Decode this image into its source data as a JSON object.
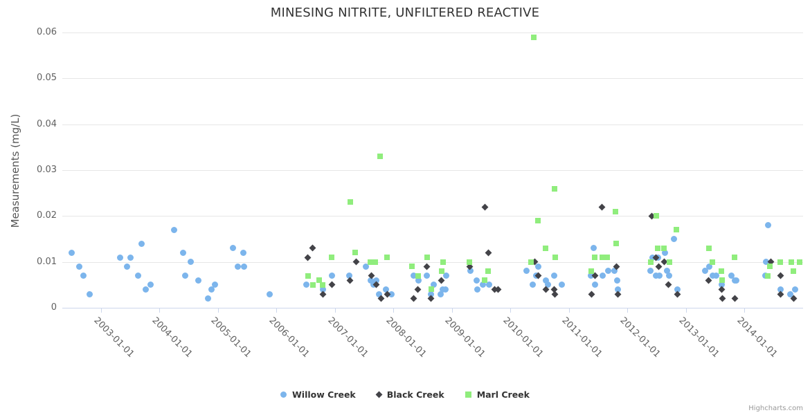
{
  "credit": "Highcharts.com",
  "chart_data": {
    "type": "scatter",
    "title": "MINESING NITRITE, UNFILTERED REACTIVE",
    "xlabel": "",
    "ylabel": "Measurements (mg/L)",
    "xlim": [
      2002.34,
      2015.0
    ],
    "ylim": [
      0,
      0.06
    ],
    "grid": "horizontal-only",
    "legend_position": "bottom-center",
    "y_ticks": [
      0,
      0.01,
      0.02,
      0.03,
      0.04,
      0.05,
      0.06
    ],
    "y_tick_labels": [
      "0",
      "0.01",
      "0.02",
      "0.03",
      "0.04",
      "0.05",
      "0.06"
    ],
    "x_tick_years": [
      2003,
      2004,
      2005,
      2006,
      2007,
      2008,
      2009,
      2010,
      2011,
      2012,
      2013,
      2014
    ],
    "x_tick_labels": [
      "2003-01-01",
      "2004-01-01",
      "2005-01-01",
      "2006-01-01",
      "2007-01-01",
      "2008-01-01",
      "2009-01-01",
      "2010-01-01",
      "2011-01-01",
      "2012-01-01",
      "2013-01-01",
      "2014-01-01"
    ],
    "series": [
      {
        "name": "Willow Creek",
        "color": "#7cb5ec",
        "marker": "circle",
        "points": [
          [
            2002.5,
            0.012
          ],
          [
            2002.63,
            0.009
          ],
          [
            2002.7,
            0.007
          ],
          [
            2002.81,
            0.003
          ],
          [
            2003.33,
            0.011
          ],
          [
            2003.45,
            0.009
          ],
          [
            2003.51,
            0.011
          ],
          [
            2003.64,
            0.007
          ],
          [
            2003.7,
            0.014
          ],
          [
            2003.76,
            0.004
          ],
          [
            2003.85,
            0.005
          ],
          [
            2004.25,
            0.017
          ],
          [
            2004.41,
            0.012
          ],
          [
            2004.44,
            0.007
          ],
          [
            2004.53,
            0.01
          ],
          [
            2004.67,
            0.006
          ],
          [
            2004.83,
            0.002
          ],
          [
            2004.89,
            0.004
          ],
          [
            2004.95,
            0.005
          ],
          [
            2005.26,
            0.013
          ],
          [
            2005.34,
            0.009
          ],
          [
            2005.43,
            0.012
          ],
          [
            2005.45,
            0.009
          ],
          [
            2005.88,
            0.003
          ],
          [
            2006.51,
            0.005
          ],
          [
            2006.8,
            0.004
          ],
          [
            2006.95,
            0.007
          ],
          [
            2007.25,
            0.007
          ],
          [
            2007.53,
            0.009
          ],
          [
            2007.61,
            0.006
          ],
          [
            2007.66,
            0.005
          ],
          [
            2007.71,
            0.006
          ],
          [
            2007.75,
            0.003
          ],
          [
            2007.87,
            0.004
          ],
          [
            2007.97,
            0.003
          ],
          [
            2008.34,
            0.007
          ],
          [
            2008.43,
            0.006
          ],
          [
            2008.57,
            0.007
          ],
          [
            2008.64,
            0.003
          ],
          [
            2008.69,
            0.005
          ],
          [
            2008.81,
            0.003
          ],
          [
            2008.84,
            0.004
          ],
          [
            2008.89,
            0.004
          ],
          [
            2008.9,
            0.007
          ],
          [
            2009.31,
            0.008
          ],
          [
            2009.42,
            0.006
          ],
          [
            2009.43,
            0.004
          ],
          [
            2009.53,
            0.005
          ],
          [
            2009.63,
            0.005
          ],
          [
            2010.27,
            0.008
          ],
          [
            2010.38,
            0.005
          ],
          [
            2010.44,
            0.007
          ],
          [
            2010.48,
            0.009
          ],
          [
            2010.6,
            0.006
          ],
          [
            2010.64,
            0.005
          ],
          [
            2010.75,
            0.007
          ],
          [
            2010.88,
            0.005
          ],
          [
            2011.37,
            0.007
          ],
          [
            2011.42,
            0.013
          ],
          [
            2011.44,
            0.005
          ],
          [
            2011.57,
            0.007
          ],
          [
            2011.67,
            0.008
          ],
          [
            2011.77,
            0.008
          ],
          [
            2011.82,
            0.006
          ],
          [
            2011.83,
            0.004
          ],
          [
            2012.39,
            0.008
          ],
          [
            2012.43,
            0.011
          ],
          [
            2012.48,
            0.007
          ],
          [
            2012.52,
            0.011
          ],
          [
            2012.54,
            0.007
          ],
          [
            2012.64,
            0.012
          ],
          [
            2012.68,
            0.008
          ],
          [
            2012.71,
            0.007
          ],
          [
            2012.79,
            0.015
          ],
          [
            2012.85,
            0.004
          ],
          [
            2013.32,
            0.008
          ],
          [
            2013.4,
            0.009
          ],
          [
            2013.46,
            0.007
          ],
          [
            2013.52,
            0.007
          ],
          [
            2013.61,
            0.005
          ],
          [
            2013.77,
            0.007
          ],
          [
            2013.83,
            0.006
          ],
          [
            2013.86,
            0.006
          ],
          [
            2014.37,
            0.01
          ],
          [
            2014.4,
            0.018
          ],
          [
            2014.35,
            0.007
          ],
          [
            2014.62,
            0.004
          ],
          [
            2014.78,
            0.003
          ],
          [
            2014.86,
            0.004
          ]
        ]
      },
      {
        "name": "Black Creek",
        "color": "#434348",
        "marker": "diamond",
        "points": [
          [
            2006.53,
            0.011
          ],
          [
            2006.62,
            0.013
          ],
          [
            2006.8,
            0.003
          ],
          [
            2006.95,
            0.005
          ],
          [
            2007.26,
            0.006
          ],
          [
            2007.36,
            0.01
          ],
          [
            2007.62,
            0.007
          ],
          [
            2007.7,
            0.005
          ],
          [
            2007.79,
            0.002
          ],
          [
            2007.89,
            0.003
          ],
          [
            2008.34,
            0.002
          ],
          [
            2008.42,
            0.004
          ],
          [
            2008.57,
            0.009
          ],
          [
            2008.64,
            0.002
          ],
          [
            2008.82,
            0.006
          ],
          [
            2009.3,
            0.009
          ],
          [
            2009.56,
            0.022
          ],
          [
            2009.62,
            0.012
          ],
          [
            2009.73,
            0.004
          ],
          [
            2009.79,
            0.004
          ],
          [
            2010.42,
            0.01
          ],
          [
            2010.47,
            0.007
          ],
          [
            2010.6,
            0.004
          ],
          [
            2010.75,
            0.004
          ],
          [
            2010.76,
            0.003
          ],
          [
            2011.38,
            0.003
          ],
          [
            2011.45,
            0.007
          ],
          [
            2011.56,
            0.022
          ],
          [
            2011.81,
            0.009
          ],
          [
            2011.83,
            0.003
          ],
          [
            2012.41,
            0.02
          ],
          [
            2012.49,
            0.011
          ],
          [
            2012.53,
            0.009
          ],
          [
            2012.63,
            0.01
          ],
          [
            2012.7,
            0.005
          ],
          [
            2012.85,
            0.003
          ],
          [
            2013.39,
            0.006
          ],
          [
            2013.61,
            0.004
          ],
          [
            2013.62,
            0.002
          ],
          [
            2013.83,
            0.002
          ],
          [
            2014.45,
            0.01
          ],
          [
            2014.62,
            0.007
          ],
          [
            2014.62,
            0.003
          ],
          [
            2014.84,
            0.002
          ]
        ]
      },
      {
        "name": "Marl Creek",
        "color": "#90ed7d",
        "marker": "square",
        "points": [
          [
            2006.54,
            0.007
          ],
          [
            2006.62,
            0.005
          ],
          [
            2006.73,
            0.006
          ],
          [
            2006.79,
            0.005
          ],
          [
            2006.94,
            0.011
          ],
          [
            2007.26,
            0.023
          ],
          [
            2007.35,
            0.012
          ],
          [
            2007.6,
            0.01
          ],
          [
            2007.69,
            0.01
          ],
          [
            2007.77,
            0.033
          ],
          [
            2007.89,
            0.011
          ],
          [
            2008.32,
            0.009
          ],
          [
            2008.42,
            0.007
          ],
          [
            2008.57,
            0.011
          ],
          [
            2008.65,
            0.004
          ],
          [
            2008.82,
            0.008
          ],
          [
            2008.85,
            0.01
          ],
          [
            2009.3,
            0.01
          ],
          [
            2009.56,
            0.006
          ],
          [
            2009.62,
            0.008
          ],
          [
            2010.35,
            0.01
          ],
          [
            2010.4,
            0.059
          ],
          [
            2010.47,
            0.019
          ],
          [
            2010.6,
            0.013
          ],
          [
            2010.75,
            0.026
          ],
          [
            2010.76,
            0.011
          ],
          [
            2011.38,
            0.008
          ],
          [
            2011.44,
            0.011
          ],
          [
            2011.57,
            0.011
          ],
          [
            2011.65,
            0.011
          ],
          [
            2011.79,
            0.021
          ],
          [
            2011.81,
            0.014
          ],
          [
            2012.4,
            0.01
          ],
          [
            2012.49,
            0.02
          ],
          [
            2012.52,
            0.013
          ],
          [
            2012.62,
            0.013
          ],
          [
            2012.72,
            0.01
          ],
          [
            2012.83,
            0.017
          ],
          [
            2013.39,
            0.013
          ],
          [
            2013.45,
            0.01
          ],
          [
            2013.6,
            0.008
          ],
          [
            2013.62,
            0.006
          ],
          [
            2013.83,
            0.011
          ],
          [
            2014.4,
            0.007
          ],
          [
            2014.43,
            0.009
          ],
          [
            2014.61,
            0.01
          ],
          [
            2014.8,
            0.01
          ],
          [
            2014.84,
            0.008
          ],
          [
            2014.94,
            0.01
          ]
        ]
      }
    ]
  }
}
